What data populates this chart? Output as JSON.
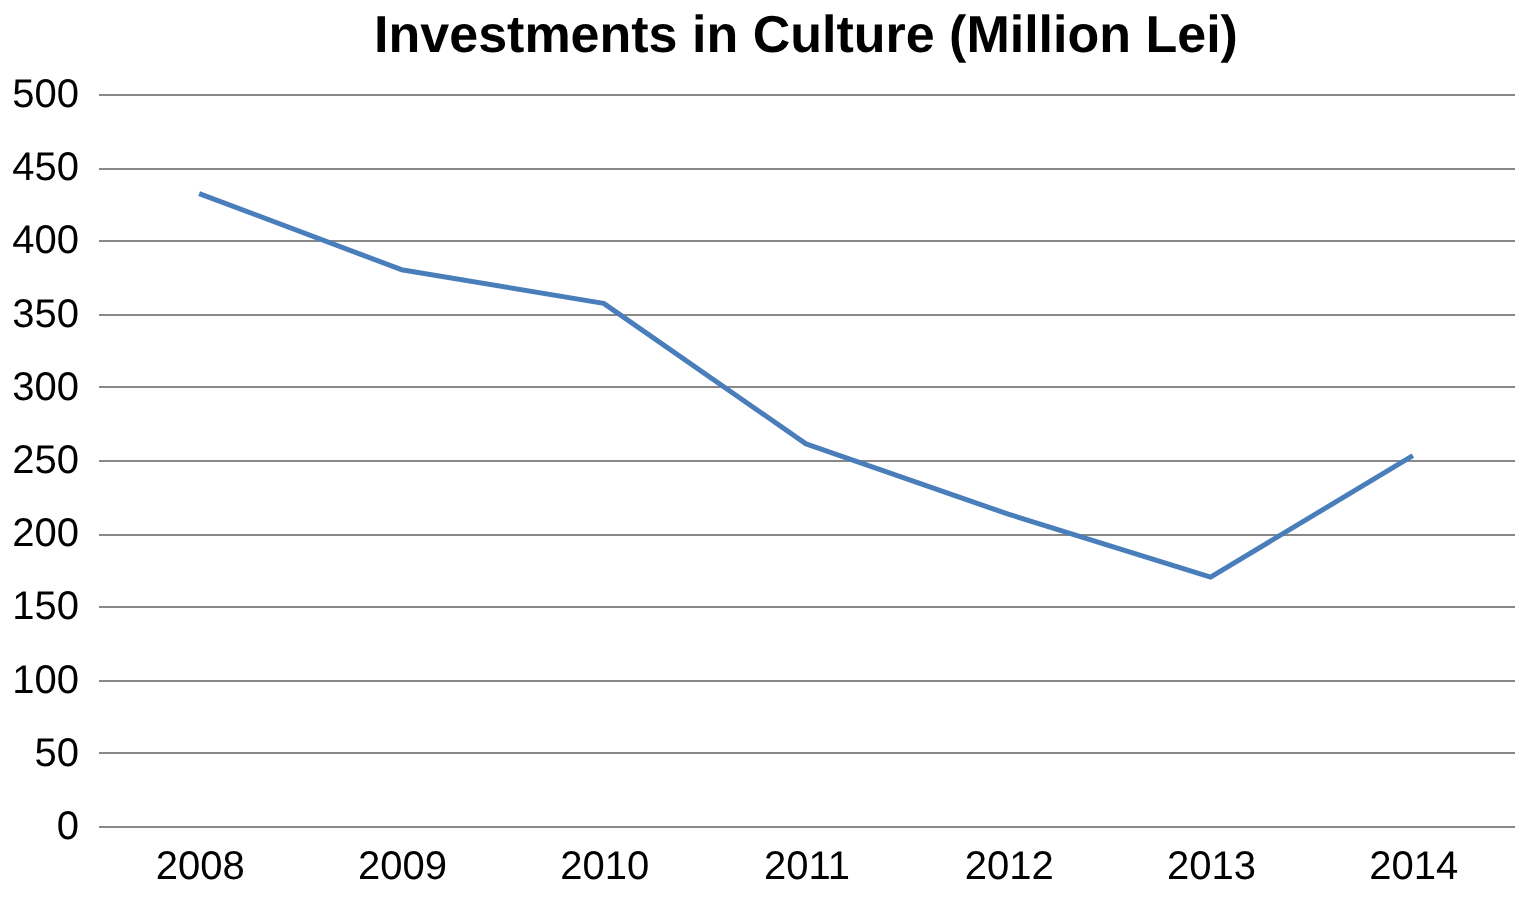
{
  "chart_data": {
    "type": "line",
    "title": "Investments in Culture (Million Lei)",
    "categories": [
      "2008",
      "2009",
      "2010",
      "2011",
      "2012",
      "2013",
      "2014"
    ],
    "series": [
      {
        "color": "#4a7ebb",
        "values": [
          432,
          380,
          357,
          261,
          213,
          170,
          253
        ]
      }
    ],
    "ylim": [
      0,
      500
    ],
    "yticks": [
      0,
      50,
      100,
      150,
      200,
      250,
      300,
      350,
      400,
      450,
      500
    ],
    "grid": "y",
    "legend": false,
    "marker": "none",
    "line_style": "solid"
  }
}
